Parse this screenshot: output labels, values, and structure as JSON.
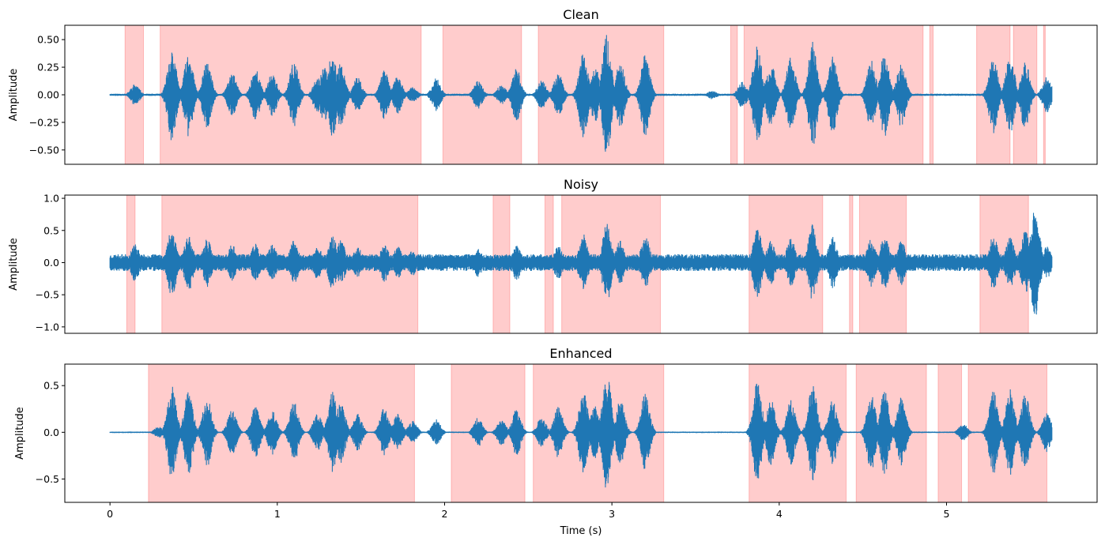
{
  "figure_xlabel": "Time (s)",
  "chart_data": [
    {
      "type": "line",
      "title": "Clean",
      "ylabel": "Amplitude",
      "xlim": [
        -0.27,
        5.9
      ],
      "ylim": [
        -0.63,
        0.63
      ],
      "yticks": [
        -0.5,
        -0.25,
        0.0,
        0.25,
        0.5
      ],
      "ytick_labels": [
        "−0.50",
        "−0.25",
        "0.00",
        "0.25",
        "0.50"
      ],
      "show_xticks": false,
      "waveform_color": "#1f77b4",
      "highlight_color": "#ff0000",
      "duration": 5.63,
      "seed": 11,
      "noise_floor": 0.01,
      "envelope_peaks": [
        [
          0.15,
          0.1
        ],
        [
          0.37,
          0.42
        ],
        [
          0.47,
          0.38
        ],
        [
          0.58,
          0.3
        ],
        [
          0.73,
          0.2
        ],
        [
          0.87,
          0.24
        ],
        [
          0.97,
          0.2
        ],
        [
          1.1,
          0.3
        ],
        [
          1.24,
          0.16
        ],
        [
          1.28,
          0.25
        ],
        [
          1.33,
          0.38
        ],
        [
          1.38,
          0.3
        ],
        [
          1.48,
          0.16
        ],
        [
          1.64,
          0.22
        ],
        [
          1.72,
          0.17
        ],
        [
          1.81,
          0.07
        ],
        [
          1.95,
          0.15
        ],
        [
          2.2,
          0.13
        ],
        [
          2.34,
          0.09
        ],
        [
          2.43,
          0.24
        ],
        [
          2.58,
          0.13
        ],
        [
          2.68,
          0.2
        ],
        [
          2.83,
          0.4
        ],
        [
          2.9,
          0.25
        ],
        [
          2.97,
          0.55
        ],
        [
          3.05,
          0.3
        ],
        [
          3.2,
          0.38
        ],
        [
          3.6,
          0.04
        ],
        [
          3.78,
          0.12
        ],
        [
          3.87,
          0.45
        ],
        [
          3.95,
          0.3
        ],
        [
          4.07,
          0.35
        ],
        [
          4.2,
          0.48
        ],
        [
          4.32,
          0.35
        ],
        [
          4.55,
          0.32
        ],
        [
          4.63,
          0.38
        ],
        [
          4.73,
          0.3
        ],
        [
          5.28,
          0.35
        ],
        [
          5.38,
          0.36
        ],
        [
          5.47,
          0.32
        ],
        [
          5.6,
          0.17
        ]
      ],
      "spans": [
        [
          0.09,
          0.2
        ],
        [
          0.3,
          1.86
        ],
        [
          1.99,
          2.46
        ],
        [
          2.56,
          3.31
        ],
        [
          3.71,
          3.75
        ],
        [
          3.79,
          4.86
        ],
        [
          4.9,
          4.92
        ],
        [
          5.18,
          5.38
        ],
        [
          5.4,
          5.54
        ],
        [
          5.58,
          5.59
        ]
      ]
    },
    {
      "type": "line",
      "title": "Noisy",
      "ylabel": "Amplitude",
      "xlim": [
        -0.27,
        5.9
      ],
      "ylim": [
        -1.1,
        1.05
      ],
      "yticks": [
        -1.0,
        -0.5,
        0.0,
        0.5,
        1.0
      ],
      "ytick_labels": [
        "−1.0",
        "−0.5",
        "0.0",
        "0.5",
        "1.0"
      ],
      "show_xticks": false,
      "waveform_color": "#1f77b4",
      "highlight_color": "#ff0000",
      "duration": 5.63,
      "seed": 23,
      "noise_floor": 0.13,
      "envelope_peaks": [
        [
          0.15,
          0.3
        ],
        [
          0.37,
          0.55
        ],
        [
          0.47,
          0.45
        ],
        [
          0.58,
          0.38
        ],
        [
          0.73,
          0.28
        ],
        [
          0.87,
          0.3
        ],
        [
          0.97,
          0.28
        ],
        [
          1.1,
          0.35
        ],
        [
          1.24,
          0.26
        ],
        [
          1.33,
          0.42
        ],
        [
          1.38,
          0.35
        ],
        [
          1.48,
          0.25
        ],
        [
          1.64,
          0.3
        ],
        [
          1.72,
          0.25
        ],
        [
          1.81,
          0.2
        ],
        [
          2.2,
          0.22
        ],
        [
          2.43,
          0.28
        ],
        [
          2.68,
          0.26
        ],
        [
          2.83,
          0.45
        ],
        [
          2.97,
          0.62
        ],
        [
          3.05,
          0.35
        ],
        [
          3.2,
          0.42
        ],
        [
          3.87,
          0.55
        ],
        [
          3.95,
          0.35
        ],
        [
          4.07,
          0.38
        ],
        [
          4.2,
          0.6
        ],
        [
          4.32,
          0.4
        ],
        [
          4.55,
          0.38
        ],
        [
          4.63,
          0.42
        ],
        [
          4.73,
          0.35
        ],
        [
          5.28,
          0.42
        ],
        [
          5.38,
          0.4
        ],
        [
          5.47,
          0.5
        ],
        [
          5.53,
          0.85
        ],
        [
          5.6,
          0.25
        ]
      ],
      "spans": [
        [
          0.1,
          0.15
        ],
        [
          0.31,
          1.84
        ],
        [
          2.29,
          2.39
        ],
        [
          2.6,
          2.65
        ],
        [
          2.7,
          3.29
        ],
        [
          3.82,
          4.26
        ],
        [
          4.42,
          4.44
        ],
        [
          4.48,
          4.76
        ],
        [
          5.2,
          5.49
        ]
      ]
    },
    {
      "type": "line",
      "title": "Enhanced",
      "ylabel": "Amplitude",
      "xlim": [
        -0.27,
        5.9
      ],
      "ylim": [
        -0.75,
        0.73
      ],
      "yticks": [
        -0.5,
        0.0,
        0.5
      ],
      "ytick_labels": [
        "−0.5",
        "0.0",
        "0.5"
      ],
      "xticks": [
        0,
        1,
        2,
        3,
        4,
        5
      ],
      "xtick_labels": [
        "0",
        "1",
        "2",
        "3",
        "4",
        "5"
      ],
      "show_xticks": true,
      "waveform_color": "#1f77b4",
      "highlight_color": "#ff0000",
      "duration": 5.63,
      "seed": 37,
      "noise_floor": 0.008,
      "envelope_peaks": [
        [
          0.29,
          0.06
        ],
        [
          0.37,
          0.5
        ],
        [
          0.47,
          0.45
        ],
        [
          0.58,
          0.38
        ],
        [
          0.73,
          0.25
        ],
        [
          0.87,
          0.28
        ],
        [
          0.97,
          0.24
        ],
        [
          1.1,
          0.33
        ],
        [
          1.24,
          0.2
        ],
        [
          1.33,
          0.44
        ],
        [
          1.38,
          0.33
        ],
        [
          1.48,
          0.2
        ],
        [
          1.64,
          0.27
        ],
        [
          1.72,
          0.2
        ],
        [
          1.81,
          0.12
        ],
        [
          1.95,
          0.14
        ],
        [
          2.2,
          0.16
        ],
        [
          2.34,
          0.14
        ],
        [
          2.43,
          0.25
        ],
        [
          2.58,
          0.16
        ],
        [
          2.68,
          0.28
        ],
        [
          2.83,
          0.45
        ],
        [
          2.9,
          0.3
        ],
        [
          2.97,
          0.65
        ],
        [
          3.05,
          0.35
        ],
        [
          3.2,
          0.42
        ],
        [
          3.87,
          0.55
        ],
        [
          3.95,
          0.35
        ],
        [
          4.07,
          0.35
        ],
        [
          4.2,
          0.52
        ],
        [
          4.32,
          0.35
        ],
        [
          4.55,
          0.42
        ],
        [
          4.63,
          0.45
        ],
        [
          4.73,
          0.38
        ],
        [
          5.1,
          0.09
        ],
        [
          5.28,
          0.45
        ],
        [
          5.38,
          0.46
        ],
        [
          5.47,
          0.42
        ],
        [
          5.6,
          0.22
        ]
      ],
      "spans": [
        [
          0.23,
          1.82
        ],
        [
          2.04,
          2.48
        ],
        [
          2.53,
          3.31
        ],
        [
          3.82,
          4.4
        ],
        [
          4.46,
          4.88
        ],
        [
          4.95,
          5.09
        ],
        [
          5.13,
          5.6
        ]
      ]
    }
  ]
}
